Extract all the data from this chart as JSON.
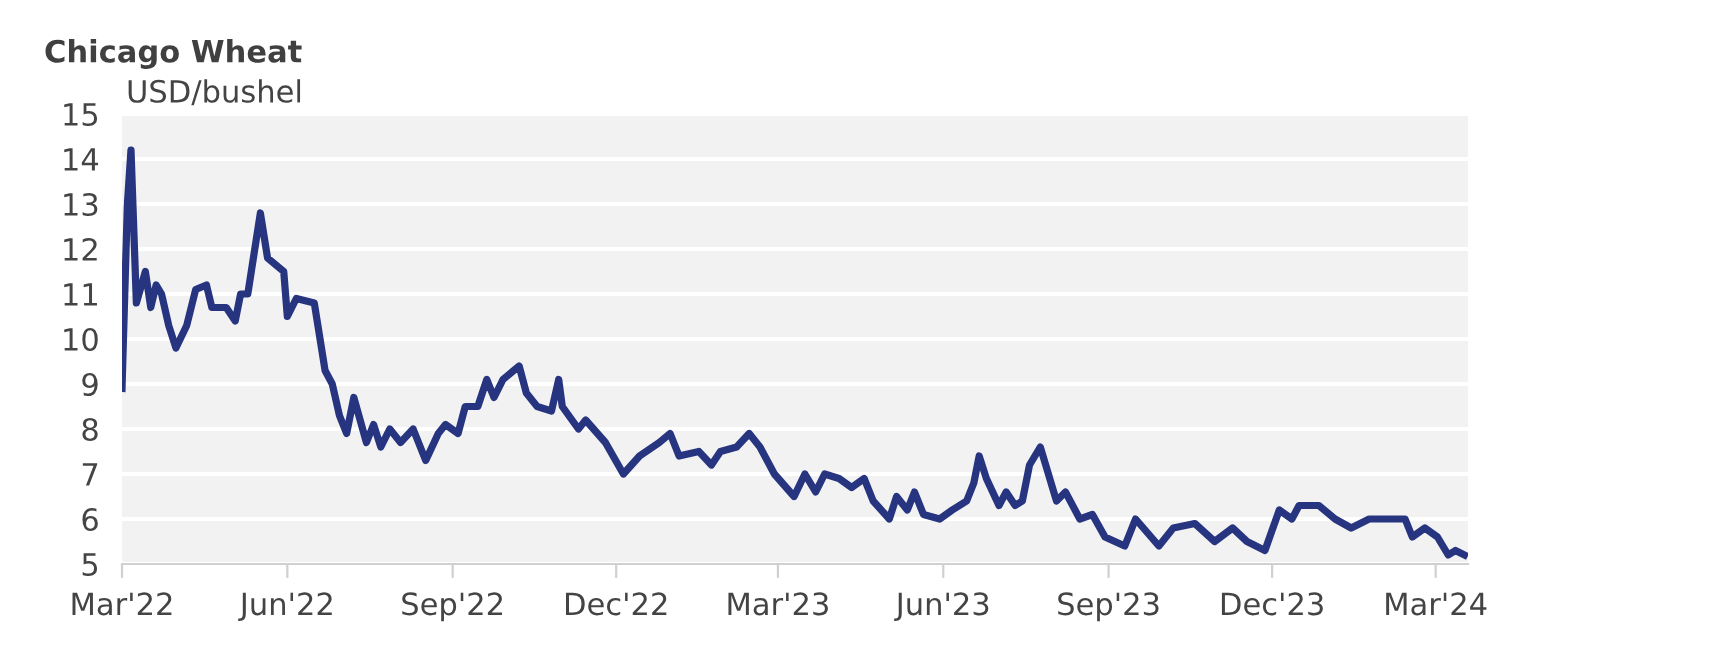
{
  "chart_data": {
    "type": "line",
    "title": "Chicago Wheat",
    "ylabel": "USD/bushel",
    "x": [
      "2022-03-01",
      "2022-03-04",
      "2022-03-06",
      "2022-03-09",
      "2022-03-14",
      "2022-03-17",
      "2022-03-20",
      "2022-03-23",
      "2022-03-27",
      "2022-03-31",
      "2022-04-06",
      "2022-04-11",
      "2022-04-17",
      "2022-04-20",
      "2022-04-28",
      "2022-05-03",
      "2022-05-06",
      "2022-05-10",
      "2022-05-17",
      "2022-05-21",
      "2022-05-27",
      "2022-05-30",
      "2022-06-01",
      "2022-06-06",
      "2022-06-16",
      "2022-06-22",
      "2022-06-26",
      "2022-06-30",
      "2022-07-04",
      "2022-07-08",
      "2022-07-15",
      "2022-07-19",
      "2022-07-23",
      "2022-07-28",
      "2022-08-03",
      "2022-08-10",
      "2022-08-17",
      "2022-08-24",
      "2022-08-28",
      "2022-09-04",
      "2022-09-08",
      "2022-09-15",
      "2022-09-20",
      "2022-09-24",
      "2022-09-29",
      "2022-10-08",
      "2022-10-12",
      "2022-10-18",
      "2022-10-26",
      "2022-10-30",
      "2022-11-01",
      "2022-11-10",
      "2022-11-14",
      "2022-11-25",
      "2022-12-05",
      "2022-12-14",
      "2022-12-25",
      "2022-12-31",
      "2023-01-05",
      "2023-01-16",
      "2023-01-23",
      "2023-01-28",
      "2023-02-06",
      "2023-02-13",
      "2023-02-19",
      "2023-02-27",
      "2023-03-10",
      "2023-03-16",
      "2023-03-22",
      "2023-03-27",
      "2023-04-04",
      "2023-04-11",
      "2023-04-18",
      "2023-04-23",
      "2023-05-02",
      "2023-05-06",
      "2023-05-12",
      "2023-05-16",
      "2023-05-21",
      "2023-05-30",
      "2023-06-06",
      "2023-06-14",
      "2023-06-18",
      "2023-06-21",
      "2023-06-25",
      "2023-07-02",
      "2023-07-06",
      "2023-07-11",
      "2023-07-15",
      "2023-07-19",
      "2023-07-25",
      "2023-08-03",
      "2023-08-08",
      "2023-08-16",
      "2023-08-23",
      "2023-08-30",
      "2023-09-10",
      "2023-09-16",
      "2023-09-29",
      "2023-10-07",
      "2023-10-19",
      "2023-10-30",
      "2023-11-09",
      "2023-11-17",
      "2023-11-27",
      "2023-12-05",
      "2023-12-12",
      "2023-12-16",
      "2023-12-27",
      "2024-01-05",
      "2024-01-14",
      "2024-01-24",
      "2024-02-06",
      "2024-02-13",
      "2024-02-17",
      "2024-02-24",
      "2024-03-02",
      "2024-03-08",
      "2024-03-12",
      "2024-03-17"
    ],
    "series": [
      {
        "color": "#27347f",
        "values": [
          8.9,
          13.0,
          14.2,
          10.8,
          11.5,
          10.7,
          11.2,
          11.0,
          10.3,
          9.8,
          10.3,
          11.1,
          11.2,
          10.7,
          10.7,
          10.4,
          11.0,
          11.0,
          12.8,
          11.8,
          11.6,
          11.5,
          10.5,
          10.9,
          10.8,
          9.3,
          9.0,
          8.3,
          7.9,
          8.7,
          7.7,
          8.1,
          7.6,
          8.0,
          7.7,
          8.0,
          7.3,
          7.9,
          8.1,
          7.9,
          8.5,
          8.5,
          9.1,
          8.7,
          9.1,
          9.4,
          8.8,
          8.5,
          8.4,
          9.1,
          8.5,
          8.0,
          8.2,
          7.7,
          7.0,
          7.4,
          7.7,
          7.9,
          7.4,
          7.5,
          7.2,
          7.5,
          7.6,
          7.9,
          7.6,
          7.0,
          6.5,
          7.0,
          6.6,
          7.0,
          6.9,
          6.7,
          6.9,
          6.4,
          6.0,
          6.5,
          6.2,
          6.6,
          6.1,
          6.0,
          6.2,
          6.4,
          6.8,
          7.4,
          6.9,
          6.3,
          6.6,
          6.3,
          6.4,
          7.2,
          7.6,
          6.4,
          6.6,
          6.0,
          6.1,
          5.6,
          5.4,
          6.0,
          5.4,
          5.8,
          5.9,
          5.5,
          5.8,
          5.5,
          5.3,
          6.2,
          6.0,
          6.3,
          6.3,
          6.0,
          5.8,
          6.0,
          6.0,
          6.0,
          5.6,
          5.8,
          5.6,
          5.2,
          5.3,
          5.2
        ]
      }
    ],
    "xlim": [
      "2022-03-01",
      "2024-03-19"
    ],
    "xticks": [
      {
        "value": "2022-03-01",
        "label": "Mar'22"
      },
      {
        "value": "2022-06-01",
        "label": "Jun'22"
      },
      {
        "value": "2022-09-01",
        "label": "Sep'22"
      },
      {
        "value": "2022-12-01",
        "label": "Dec'22"
      },
      {
        "value": "2023-03-01",
        "label": "Mar'23"
      },
      {
        "value": "2023-06-01",
        "label": "Jun'23"
      },
      {
        "value": "2023-09-01",
        "label": "Sep'23"
      },
      {
        "value": "2023-12-01",
        "label": "Dec'23"
      },
      {
        "value": "2024-03-01",
        "label": "Mar'24"
      }
    ],
    "ylim": [
      5,
      15
    ],
    "yticks": [
      5,
      6,
      7,
      8,
      9,
      10,
      11,
      12,
      13,
      14,
      15
    ],
    "grid": "y",
    "legend": false,
    "marker": "none",
    "line_style": "solid"
  }
}
